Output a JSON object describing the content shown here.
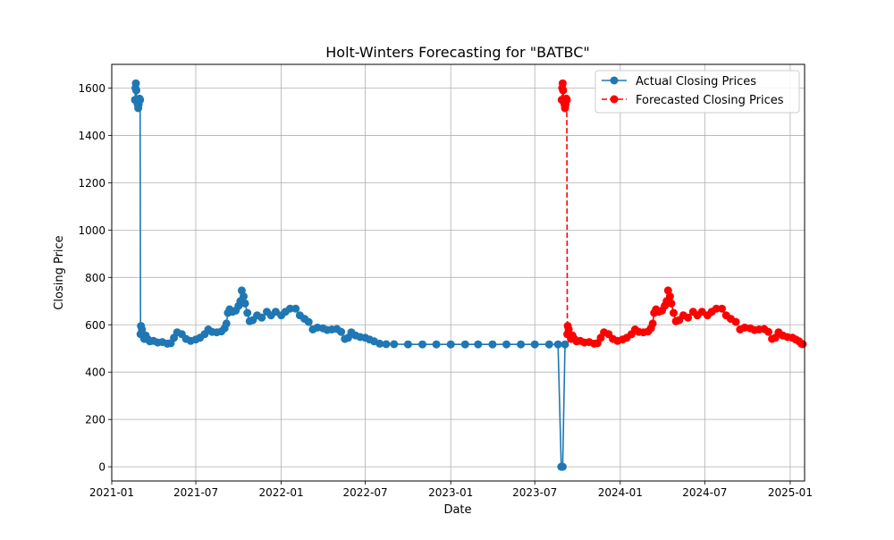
{
  "colors": {
    "actual": "#1f77b4",
    "forecast": "#ff0000",
    "grid": "#b0b0b0",
    "axes": "#000000"
  },
  "chart_data": {
    "type": "line",
    "title": "Holt-Winters Forecasting for \"BATBC\"",
    "xlabel": "Date",
    "ylabel": "Closing Price",
    "xlim": [
      "2021-01-01",
      "2025-02-01"
    ],
    "ylim": [
      -60,
      1700
    ],
    "grid": true,
    "legend_position": "top-right",
    "x_ticks": [
      "2021-01",
      "2021-07",
      "2022-01",
      "2022-07",
      "2023-01",
      "2023-07",
      "2024-01",
      "2024-07",
      "2025-01"
    ],
    "y_ticks": [
      0,
      200,
      400,
      600,
      800,
      1000,
      1200,
      1400,
      1600
    ],
    "series": [
      {
        "name": "Actual Closing Prices",
        "color": "#1f77b4",
        "linestyle": "solid",
        "marker": "circle",
        "points": [
          [
            "2021-02-20",
            1550
          ],
          [
            "2021-02-21",
            1600
          ],
          [
            "2021-02-22",
            1620
          ],
          [
            "2021-02-23",
            1590
          ],
          [
            "2021-02-24",
            1550
          ],
          [
            "2021-02-25",
            1540
          ],
          [
            "2021-02-26",
            1530
          ],
          [
            "2021-02-27",
            1515
          ],
          [
            "2021-02-28",
            1530
          ],
          [
            "2021-03-01",
            1545
          ],
          [
            "2021-03-02",
            1555
          ],
          [
            "2021-03-03",
            1550
          ],
          [
            "2021-03-04",
            560
          ],
          [
            "2021-03-05",
            595
          ],
          [
            "2021-03-07",
            580
          ],
          [
            "2021-03-09",
            555
          ],
          [
            "2021-03-12",
            540
          ],
          [
            "2021-03-15",
            555
          ],
          [
            "2021-03-19",
            540
          ],
          [
            "2021-03-24",
            530
          ],
          [
            "2021-04-01",
            532
          ],
          [
            "2021-04-10",
            525
          ],
          [
            "2021-04-20",
            527
          ],
          [
            "2021-05-01",
            520
          ],
          [
            "2021-05-08",
            522
          ],
          [
            "2021-05-15",
            545
          ],
          [
            "2021-05-22",
            568
          ],
          [
            "2021-06-01",
            560
          ],
          [
            "2021-06-10",
            540
          ],
          [
            "2021-06-20",
            532
          ],
          [
            "2021-07-01",
            538
          ],
          [
            "2021-07-10",
            545
          ],
          [
            "2021-07-20",
            560
          ],
          [
            "2021-07-28",
            580
          ],
          [
            "2021-08-05",
            570
          ],
          [
            "2021-08-15",
            568
          ],
          [
            "2021-08-25",
            572
          ],
          [
            "2021-09-01",
            585
          ],
          [
            "2021-09-05",
            605
          ],
          [
            "2021-09-08",
            650
          ],
          [
            "2021-09-12",
            665
          ],
          [
            "2021-09-18",
            655
          ],
          [
            "2021-09-25",
            660
          ],
          [
            "2021-10-01",
            680
          ],
          [
            "2021-10-05",
            700
          ],
          [
            "2021-10-08",
            745
          ],
          [
            "2021-10-12",
            720
          ],
          [
            "2021-10-15",
            690
          ],
          [
            "2021-10-20",
            650
          ],
          [
            "2021-10-25",
            615
          ],
          [
            "2021-11-01",
            620
          ],
          [
            "2021-11-10",
            640
          ],
          [
            "2021-11-20",
            630
          ],
          [
            "2021-12-01",
            655
          ],
          [
            "2021-12-10",
            640
          ],
          [
            "2021-12-20",
            655
          ],
          [
            "2022-01-01",
            640
          ],
          [
            "2022-01-10",
            655
          ],
          [
            "2022-01-20",
            668
          ],
          [
            "2022-02-01",
            668
          ],
          [
            "2022-02-10",
            640
          ],
          [
            "2022-02-20",
            625
          ],
          [
            "2022-03-01",
            612
          ],
          [
            "2022-03-10",
            580
          ],
          [
            "2022-03-20",
            588
          ],
          [
            "2022-04-01",
            585
          ],
          [
            "2022-04-10",
            578
          ],
          [
            "2022-04-20",
            580
          ],
          [
            "2022-05-01",
            582
          ],
          [
            "2022-05-10",
            570
          ],
          [
            "2022-05-18",
            540
          ],
          [
            "2022-05-25",
            545
          ],
          [
            "2022-06-01",
            568
          ],
          [
            "2022-06-10",
            555
          ],
          [
            "2022-06-20",
            548
          ],
          [
            "2022-07-01",
            545
          ],
          [
            "2022-07-10",
            538
          ],
          [
            "2022-07-20",
            530
          ],
          [
            "2022-08-01",
            520
          ],
          [
            "2022-08-15",
            518
          ],
          [
            "2022-09-01",
            518
          ],
          [
            "2022-10-01",
            517
          ],
          [
            "2022-11-01",
            517
          ],
          [
            "2022-12-01",
            517
          ],
          [
            "2023-01-01",
            517
          ],
          [
            "2023-02-01",
            517
          ],
          [
            "2023-03-01",
            517
          ],
          [
            "2023-04-01",
            517
          ],
          [
            "2023-05-01",
            517
          ],
          [
            "2023-06-01",
            517
          ],
          [
            "2023-07-01",
            517
          ],
          [
            "2023-08-01",
            517
          ],
          [
            "2023-08-20",
            517
          ],
          [
            "2023-08-27",
            0
          ],
          [
            "2023-08-30",
            0
          ],
          [
            "2023-09-04",
            517
          ]
        ]
      },
      {
        "name": "Forecasted Closing Prices",
        "color": "#ff0000",
        "linestyle": "dashed",
        "marker": "circle",
        "points": [
          [
            "2023-08-28",
            1550
          ],
          [
            "2023-08-29",
            1600
          ],
          [
            "2023-08-30",
            1620
          ],
          [
            "2023-08-31",
            1590
          ],
          [
            "2023-09-01",
            1550
          ],
          [
            "2023-09-02",
            1540
          ],
          [
            "2023-09-03",
            1530
          ],
          [
            "2023-09-04",
            1515
          ],
          [
            "2023-09-05",
            1530
          ],
          [
            "2023-09-06",
            1545
          ],
          [
            "2023-09-07",
            1555
          ],
          [
            "2023-09-08",
            1550
          ],
          [
            "2023-09-09",
            560
          ],
          [
            "2023-09-10",
            595
          ],
          [
            "2023-09-12",
            580
          ],
          [
            "2023-09-14",
            555
          ],
          [
            "2023-09-17",
            540
          ],
          [
            "2023-09-20",
            555
          ],
          [
            "2023-09-24",
            540
          ],
          [
            "2023-09-29",
            530
          ],
          [
            "2023-10-07",
            532
          ],
          [
            "2023-10-16",
            525
          ],
          [
            "2023-10-26",
            527
          ],
          [
            "2023-11-06",
            520
          ],
          [
            "2023-11-13",
            522
          ],
          [
            "2023-11-20",
            545
          ],
          [
            "2023-11-27",
            568
          ],
          [
            "2023-12-07",
            560
          ],
          [
            "2023-12-16",
            540
          ],
          [
            "2023-12-26",
            532
          ],
          [
            "2024-01-06",
            538
          ],
          [
            "2024-01-15",
            545
          ],
          [
            "2024-01-25",
            560
          ],
          [
            "2024-02-02",
            580
          ],
          [
            "2024-02-10",
            570
          ],
          [
            "2024-02-20",
            568
          ],
          [
            "2024-03-01",
            572
          ],
          [
            "2024-03-07",
            585
          ],
          [
            "2024-03-11",
            605
          ],
          [
            "2024-03-14",
            650
          ],
          [
            "2024-03-18",
            665
          ],
          [
            "2024-03-24",
            655
          ],
          [
            "2024-03-31",
            660
          ],
          [
            "2024-04-06",
            680
          ],
          [
            "2024-04-10",
            700
          ],
          [
            "2024-04-13",
            745
          ],
          [
            "2024-04-17",
            720
          ],
          [
            "2024-04-20",
            690
          ],
          [
            "2024-04-25",
            650
          ],
          [
            "2024-04-30",
            615
          ],
          [
            "2024-05-07",
            620
          ],
          [
            "2024-05-16",
            640
          ],
          [
            "2024-05-26",
            630
          ],
          [
            "2024-06-06",
            655
          ],
          [
            "2024-06-15",
            640
          ],
          [
            "2024-06-25",
            655
          ],
          [
            "2024-07-07",
            640
          ],
          [
            "2024-07-16",
            655
          ],
          [
            "2024-07-26",
            668
          ],
          [
            "2024-08-07",
            668
          ],
          [
            "2024-08-16",
            640
          ],
          [
            "2024-08-26",
            625
          ],
          [
            "2024-09-06",
            612
          ],
          [
            "2024-09-15",
            580
          ],
          [
            "2024-09-25",
            588
          ],
          [
            "2024-10-07",
            585
          ],
          [
            "2024-10-16",
            578
          ],
          [
            "2024-10-26",
            580
          ],
          [
            "2024-11-06",
            582
          ],
          [
            "2024-11-15",
            570
          ],
          [
            "2024-11-23",
            540
          ],
          [
            "2024-11-30",
            545
          ],
          [
            "2024-12-07",
            568
          ],
          [
            "2024-12-16",
            555
          ],
          [
            "2024-12-26",
            548
          ],
          [
            "2025-01-06",
            545
          ],
          [
            "2025-01-13",
            538
          ],
          [
            "2025-01-20",
            530
          ],
          [
            "2025-01-25",
            520
          ],
          [
            "2025-01-28",
            518
          ]
        ]
      }
    ]
  }
}
